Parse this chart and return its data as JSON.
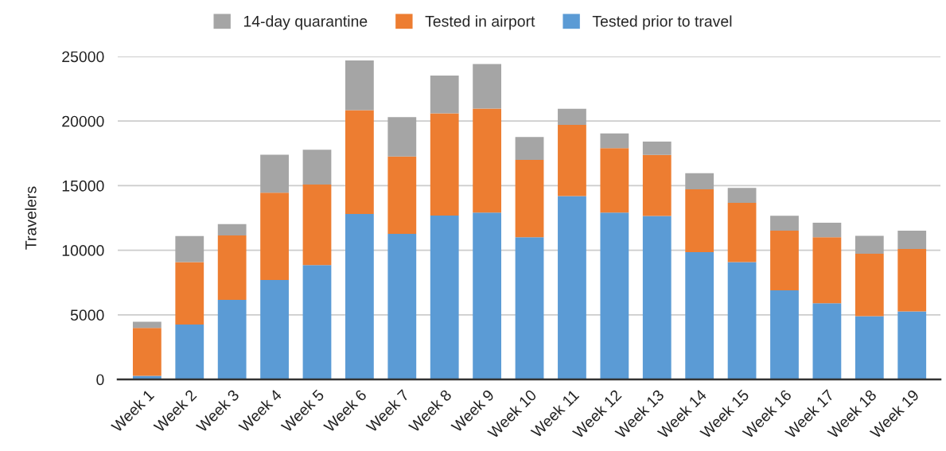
{
  "chart_data": {
    "type": "bar",
    "stacked": true,
    "categories": [
      "Week 1",
      "Week 2",
      "Week 3",
      "Week 4",
      "Week 5",
      "Week 6",
      "Week 7",
      "Week 8",
      "Week 9",
      "Week 10",
      "Week 11",
      "Week 12",
      "Week 13",
      "Week 14",
      "Week 15",
      "Week 16",
      "Week 17",
      "Week 18",
      "Week 19"
    ],
    "series": [
      {
        "name": "Tested prior to travel",
        "color": "#5b9bd5",
        "values": [
          270,
          4250,
          6160,
          7700,
          8850,
          12810,
          11270,
          12690,
          12910,
          11000,
          14200,
          12910,
          12660,
          9850,
          9090,
          6900,
          5890,
          4890,
          5260
        ]
      },
      {
        "name": "Tested in airport",
        "color": "#ed7d31",
        "values": [
          3710,
          4840,
          4990,
          6750,
          6240,
          8040,
          5990,
          7900,
          8050,
          6000,
          5500,
          4990,
          4720,
          4870,
          4580,
          4620,
          5110,
          4840,
          4840
        ]
      },
      {
        "name": "14-day quarantine",
        "color": "#a5a5a5",
        "values": [
          490,
          2010,
          880,
          2940,
          2690,
          3840,
          3040,
          2930,
          3450,
          1770,
          1250,
          1150,
          1030,
          1250,
          1150,
          1150,
          1130,
          1380,
          1420
        ]
      }
    ],
    "ylabel": "Travelers",
    "ylim": [
      0,
      25000
    ],
    "yticks": [
      0,
      5000,
      10000,
      15000,
      20000,
      25000
    ],
    "grid": "y",
    "legend": "top"
  }
}
